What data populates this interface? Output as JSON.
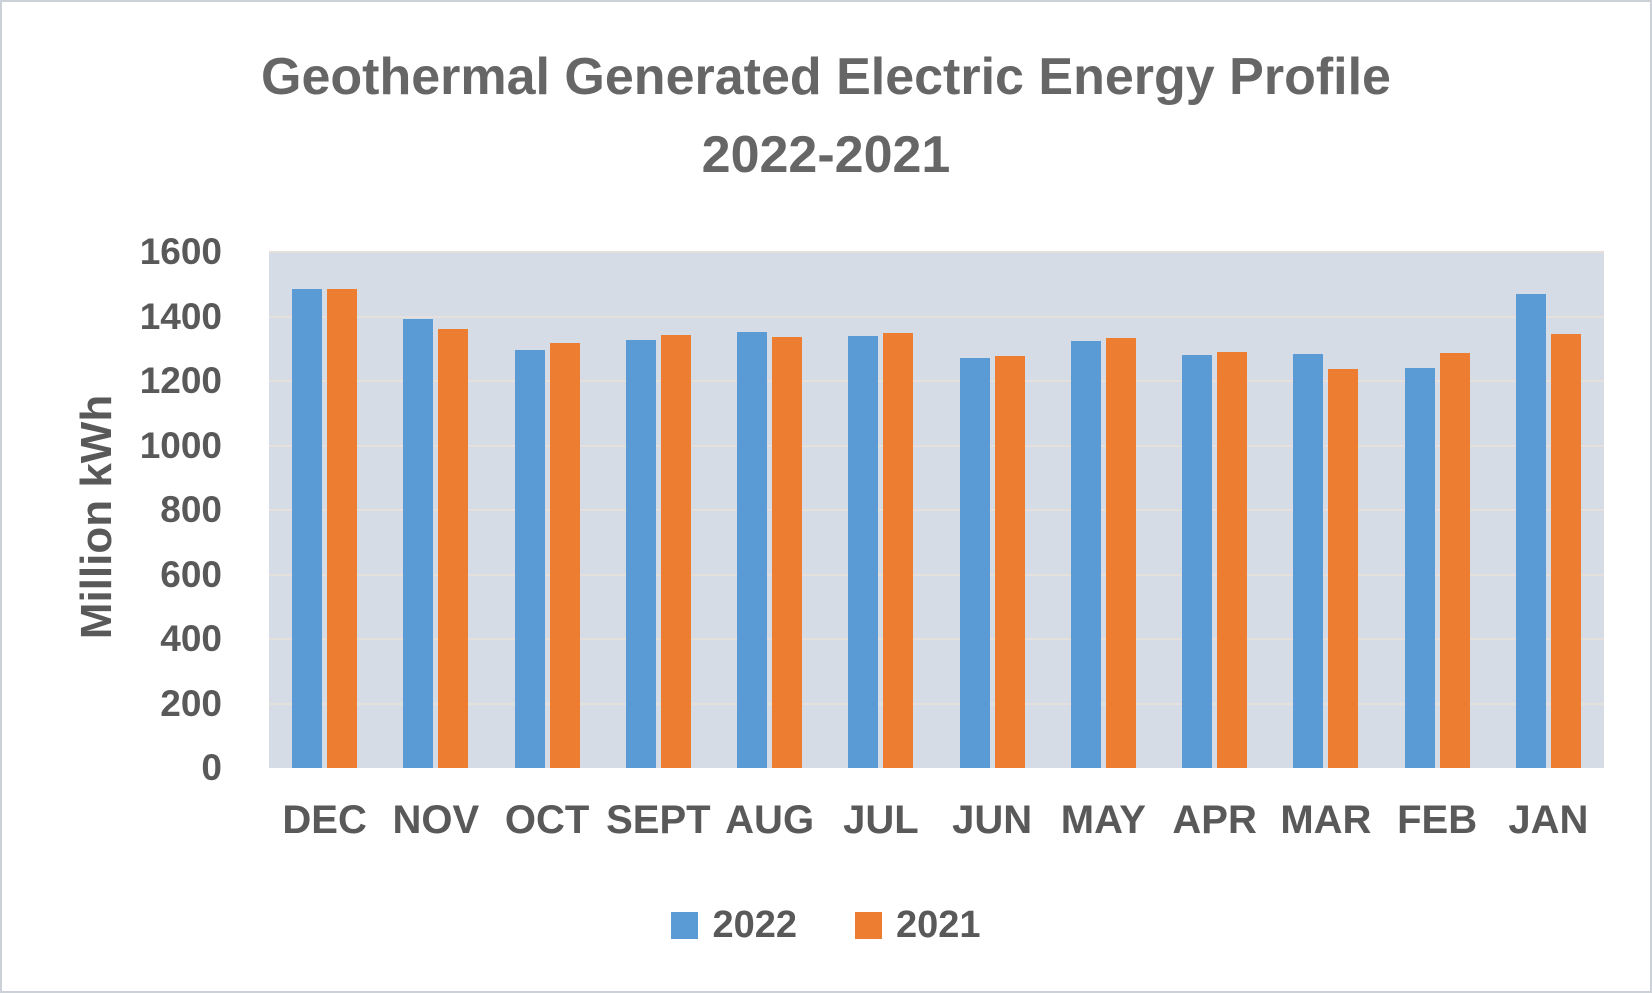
{
  "title": {
    "line1": "Geothermal Generated Electric Energy Profile",
    "line2": "2022-2021"
  },
  "chart_data": {
    "type": "bar",
    "title": "Geothermal Generated Electric Energy Profile 2022-2021",
    "xlabel": "",
    "ylabel": "Million kWh",
    "ylim": [
      0,
      1600
    ],
    "yticks": [
      0,
      200,
      400,
      600,
      800,
      1000,
      1200,
      1400,
      1600
    ],
    "grid": true,
    "legend_position": "bottom",
    "plot_background": "#D6DCE5",
    "gridline_color": "#e6e0dd",
    "categories": [
      "DEC",
      "NOV",
      "OCT",
      "SEPT",
      "AUG",
      "JUL",
      "JUN",
      "MAY",
      "APR",
      "MAR",
      "FEB",
      "JAN"
    ],
    "series": [
      {
        "name": "2022",
        "color": "#5B9BD5",
        "values": [
          1485,
          1393,
          1295,
          1326,
          1352,
          1340,
          1272,
          1324,
          1280,
          1283,
          1239,
          1470
        ]
      },
      {
        "name": "2021",
        "color": "#ED7D31",
        "values": [
          1486,
          1362,
          1318,
          1342,
          1336,
          1349,
          1278,
          1333,
          1290,
          1238,
          1287,
          1347
        ]
      }
    ]
  }
}
